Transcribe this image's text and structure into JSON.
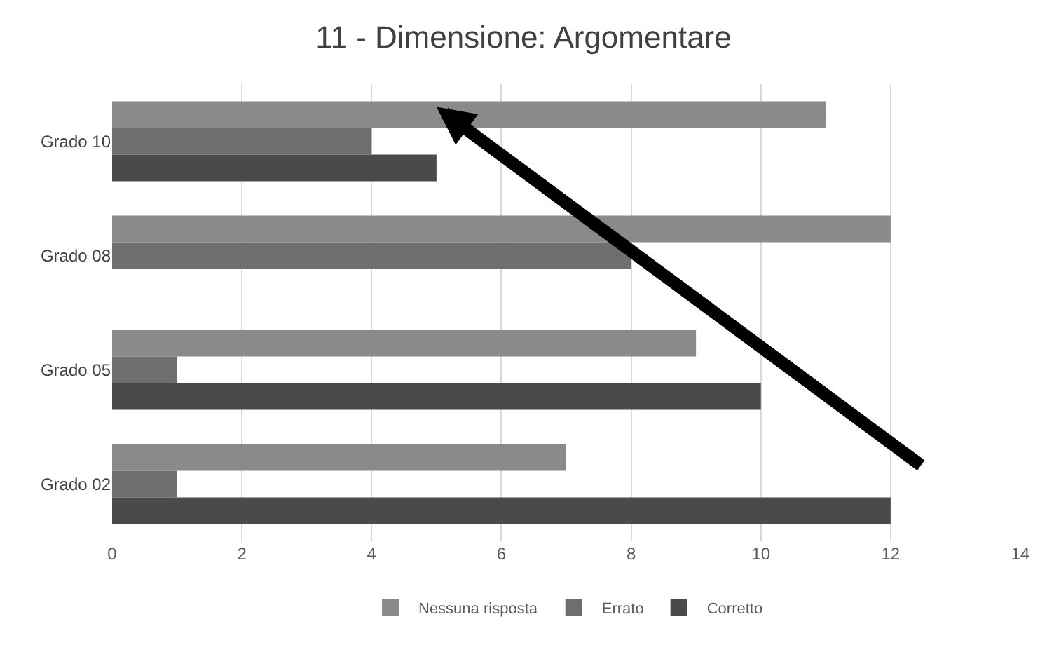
{
  "chart_data": {
    "type": "bar",
    "orientation": "horizontal",
    "title": "11 - Dimensione: Argomentare",
    "categories": [
      "Grado 10",
      "Grado 08",
      "Grado 05",
      "Grado 02"
    ],
    "series": [
      {
        "name": "Nessuna risposta",
        "color": "#8a8a8a",
        "values": [
          11,
          12,
          9,
          7
        ]
      },
      {
        "name": "Errato",
        "color": "#6e6e6e",
        "values": [
          4,
          8,
          1,
          1
        ]
      },
      {
        "name": "Corretto",
        "color": "#4a4a4a",
        "values": [
          5,
          0,
          10,
          12
        ]
      }
    ],
    "xlim": [
      0,
      14
    ],
    "xticks": [
      0,
      2,
      4,
      6,
      8,
      10,
      12,
      14
    ],
    "grid": "x",
    "legend": "bottom"
  }
}
